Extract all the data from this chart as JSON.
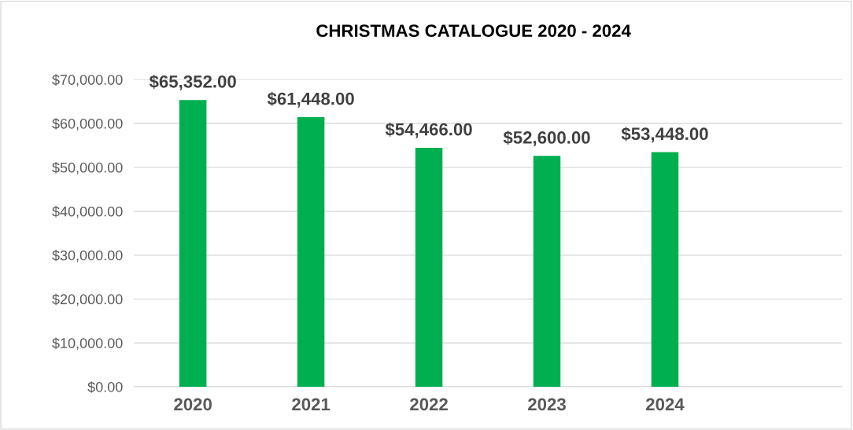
{
  "chart_data": {
    "type": "bar",
    "title": "CHRISTMAS CATALOGUE 2020 - 2024",
    "categories": [
      "2020",
      "2021",
      "2022",
      "2023",
      "2024",
      null
    ],
    "values": [
      65352,
      61448,
      54466,
      52600,
      53448,
      null
    ],
    "value_labels": [
      "$65,352.00",
      "$61,448.00",
      "$54,466.00",
      "$52,600.00",
      "$53,448.00",
      null
    ],
    "color": "#00b050",
    "ylim": [
      0,
      70000
    ],
    "yticks": [
      {
        "value": 0,
        "label": "$0.00"
      },
      {
        "value": 10000,
        "label": "$10,000.00"
      },
      {
        "value": 20000,
        "label": "$20,000.00"
      },
      {
        "value": 30000,
        "label": "$30,000.00"
      },
      {
        "value": 40000,
        "label": "$40,000.00"
      },
      {
        "value": 50000,
        "label": "$50,000.00"
      },
      {
        "value": 60000,
        "label": "$60,000.00"
      },
      {
        "value": 70000,
        "label": "$70,000.00"
      }
    ],
    "grid": "y"
  }
}
